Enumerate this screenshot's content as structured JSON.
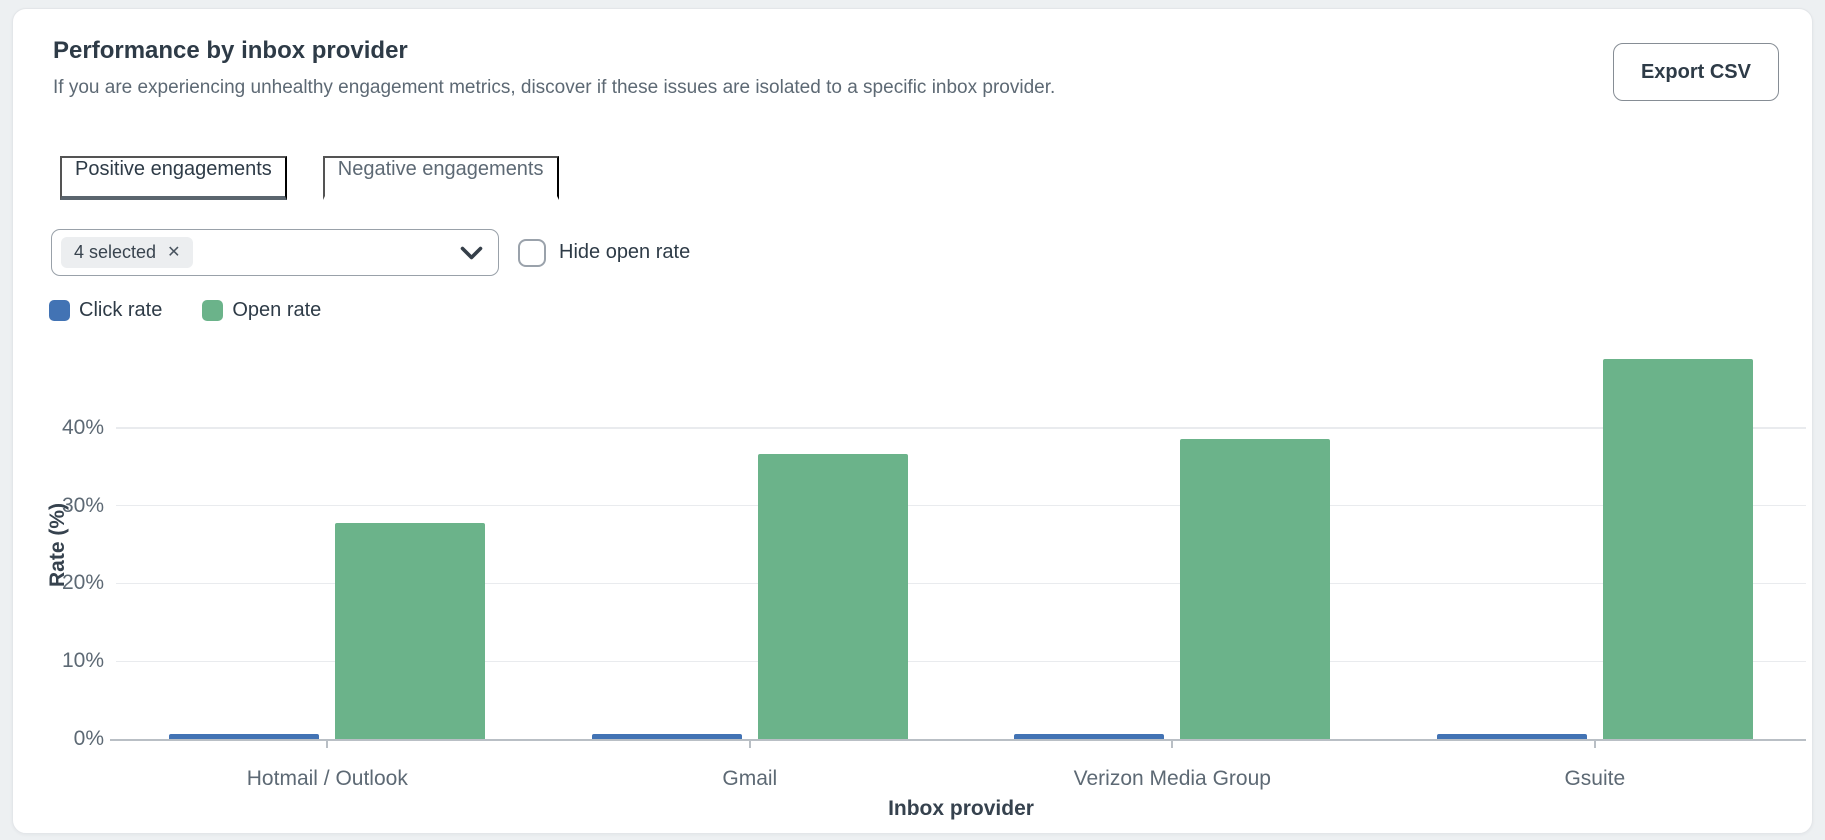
{
  "card": {
    "title": "Performance by inbox provider",
    "subtitle": "If you are experiencing unhealthy engagement metrics, discover if these issues are isolated to a specific inbox provider.",
    "export_button_label": "Export CSV"
  },
  "tabs": [
    {
      "label": "Positive engagements",
      "active": true
    },
    {
      "label": "Negative engagements",
      "active": false
    }
  ],
  "filters": {
    "provider_select": {
      "value": "4 selected",
      "clear_icon": "✕"
    },
    "hide_open_rate": {
      "label": "Hide open rate",
      "checked": false
    }
  },
  "legend": [
    {
      "label": "Click rate",
      "color": "#4273b4"
    },
    {
      "label": "Open rate",
      "color": "#6bb38a"
    }
  ],
  "chart_data": {
    "type": "bar",
    "categories": [
      "Hotmail / Outlook",
      "Gmail",
      "Verizon Media Group",
      "Gsuite"
    ],
    "series": [
      {
        "name": "Click rate",
        "color": "#4273b4",
        "values": [
          0.6,
          0.6,
          0.6,
          0.6
        ]
      },
      {
        "name": "Open rate",
        "color": "#6bb38a",
        "values": [
          27.8,
          36.7,
          38.6,
          48.8
        ]
      }
    ],
    "xlabel": "Inbox provider",
    "ylabel": "Rate (%)",
    "ylim": [
      0,
      50
    ],
    "yticks": [
      0,
      10,
      20,
      30,
      40
    ],
    "ytick_format": "{v}%",
    "grid": true,
    "legend_position": "top-left"
  },
  "colors": {
    "page_bg": "#edf0f2",
    "card_bg": "#ffffff",
    "card_border": "#e3e6e9",
    "heading_text": "#2e3b47",
    "muted_text": "#5d6974",
    "tab_underline": "#5b656e",
    "control_border": "#99a1a9",
    "chip_bg": "#eceef0",
    "gridline": "#e9ebee",
    "axis_line": "#b9bfc5"
  }
}
